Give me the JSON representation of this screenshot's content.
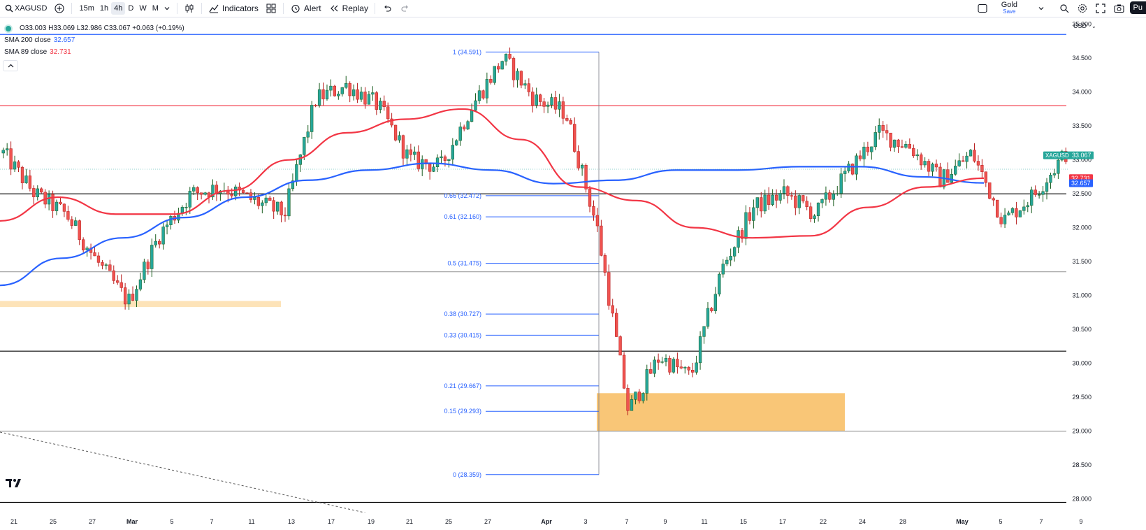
{
  "toolbar": {
    "symbol": "XAGUSD",
    "timeframes": [
      "15m",
      "1h",
      "4h",
      "D",
      "W",
      "M"
    ],
    "active_timeframe": "4h",
    "indicators_label": "Indicators",
    "alert_label": "Alert",
    "replay_label": "Replay",
    "layout_name": "Gold",
    "layout_sub": "Save",
    "publish_label": "Pu"
  },
  "legend": {
    "ohlc": "O33.003 H33.069 L32.986 C33.067 +0.063 (+0.19%)",
    "sma200_label": "SMA 200 close",
    "sma200_value": "32.657",
    "sma89_label": "SMA 89 close",
    "sma89_value": "32.731"
  },
  "colors": {
    "up": "#26a69a",
    "down": "#ef5350",
    "upBody": "#2e7d32",
    "downBody": "#c62828",
    "sma200": "#2962ff",
    "sma89": "#f23645",
    "fib": "#2962ff",
    "zone": "#f9bb4e"
  },
  "chart_data": {
    "type": "candlestick",
    "symbol": "XAGUSD",
    "currency": "USD",
    "ylim": [
      27.8,
      35.1
    ],
    "y_ticks": [
      "35.000",
      "34.500",
      "34.000",
      "33.500",
      "33.000",
      "32.500",
      "32.000",
      "31.500",
      "31.000",
      "30.500",
      "30.000",
      "29.500",
      "29.000",
      "28.500",
      "28.000"
    ],
    "x_ticks": [
      "21",
      "25",
      "27",
      "Mar",
      "5",
      "7",
      "11",
      "13",
      "17",
      "19",
      "21",
      "25",
      "27",
      "Apr",
      "3",
      "7",
      "9",
      "11",
      "15",
      "17",
      "22",
      "24",
      "28",
      "May",
      "5",
      "7",
      "9"
    ],
    "last_price_label": "XAGUSD",
    "last_price": "33.067",
    "sma89_tag": "32.731",
    "sma200_tag": "32.657",
    "fib_levels": [
      {
        "ratio": "1",
        "price": "34.591"
      },
      {
        "ratio": "0.66",
        "price": "32.472"
      },
      {
        "ratio": "0.61",
        "price": "32.160"
      },
      {
        "ratio": "0.5",
        "price": "31.475"
      },
      {
        "ratio": "0.38",
        "price": "30.727"
      },
      {
        "ratio": "0.33",
        "price": "30.415"
      },
      {
        "ratio": "0.21",
        "price": "29.667"
      },
      {
        "ratio": "0.15",
        "price": "29.293"
      },
      {
        "ratio": "0",
        "price": "28.359"
      }
    ],
    "horizontal_lines": [
      {
        "price": 34.85,
        "color": "#2962ff"
      },
      {
        "price": 33.8,
        "color": "#f23645"
      },
      {
        "price": 32.5,
        "color": "#000000"
      },
      {
        "price": 31.35,
        "color": "#9e9e9e"
      },
      {
        "price": 30.18,
        "color": "#000000"
      },
      {
        "price": 29.0,
        "color": "#9e9e9e"
      },
      {
        "price": 27.95,
        "color": "#000000"
      }
    ],
    "zones": [
      {
        "x0": 0,
        "x1": 74,
        "y0": 30.92,
        "y1": 30.83,
        "color": "#fde3b8"
      },
      {
        "x0": 155,
        "x1": 220,
        "y0": 29.56,
        "y1": 29.0,
        "color": "#f9c677"
      }
    ],
    "anchor_prices": [
      33.1,
      32.5,
      32.2,
      31.5,
      30.9,
      31.9,
      32.5,
      32.6,
      32.4,
      32.2,
      33.9,
      34.1,
      33.8,
      33.0,
      32.9,
      33.8,
      34.5,
      33.9,
      33.7,
      32.0,
      29.3,
      30.1,
      29.8,
      31.4,
      32.3,
      32.5,
      32.2,
      32.8,
      33.4,
      33.2,
      32.7,
      33.1,
      32.1,
      32.5,
      33.1
    ],
    "sma89_points": [
      32.1,
      32.45,
      32.2,
      32.2,
      32.55,
      33.0,
      33.4,
      33.6,
      33.75,
      33.3,
      32.6,
      32.4,
      32.0,
      31.85,
      31.88,
      32.3,
      32.6,
      32.73
    ],
    "sma200_points": [
      31.15,
      31.55,
      31.85,
      32.15,
      32.45,
      32.7,
      32.85,
      32.95,
      32.85,
      32.65,
      32.7,
      32.85,
      32.85,
      32.9,
      32.9,
      32.75,
      32.66
    ]
  }
}
